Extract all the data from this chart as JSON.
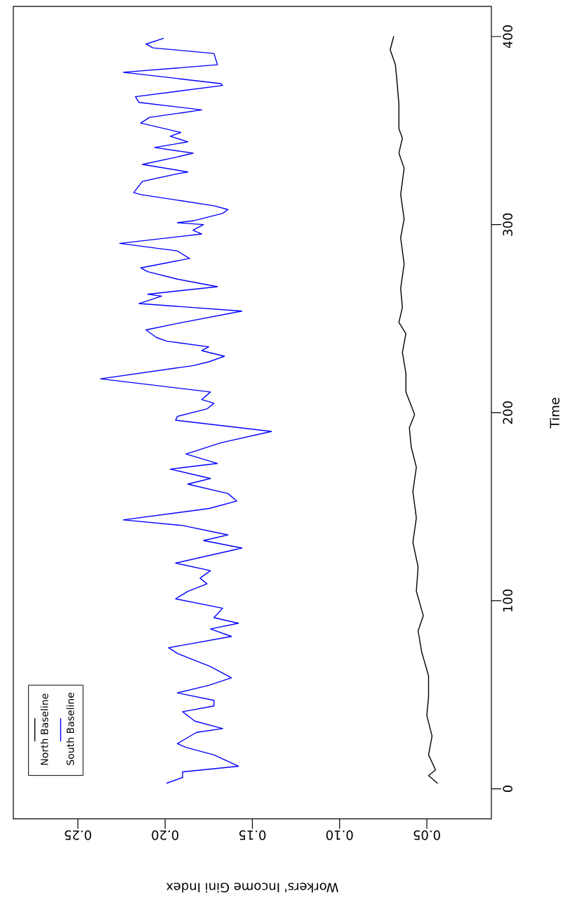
{
  "chart_data": {
    "type": "line",
    "xlabel": "Workers' Income Gini Index",
    "ylabel": "Time",
    "xlim": [
      0.287,
      0.013
    ],
    "ylim": [
      -16,
      416
    ],
    "xticks": [
      0.05,
      {
        "value": 0.1,
        "label": "0.10"
      },
      0.15,
      {
        "value": 0.2,
        "label": "0.20"
      },
      0.25
    ],
    "yticks": [
      0,
      100,
      200,
      300,
      400
    ],
    "legend": "bottom left",
    "marker": "none",
    "line_style": "solid",
    "series": [
      {
        "name": "North Baseline",
        "color": "#000000",
        "values": [
          3,
          7,
          10,
          18,
          28,
          39,
          49,
          60,
          73,
          84,
          92,
          105,
          118,
          131,
          144,
          158,
          171,
          182,
          192,
          199,
          211,
          221,
          232,
          242,
          248,
          256,
          266,
          279,
          293,
          303,
          316,
          330,
          338,
          346,
          351,
          364,
          375,
          385,
          393,
          400
        ],
        "x": [
          0.044,
          0.049,
          0.045,
          0.049,
          0.047,
          0.05,
          0.049,
          0.049,
          0.053,
          0.055,
          0.052,
          0.056,
          0.055,
          0.058,
          0.056,
          0.058,
          0.056,
          0.059,
          0.06,
          0.057,
          0.062,
          0.062,
          0.064,
          0.062,
          0.066,
          0.064,
          0.065,
          0.063,
          0.065,
          0.063,
          0.065,
          0.063,
          0.066,
          0.064,
          0.066,
          0.066,
          0.067,
          0.068,
          0.071,
          0.069
        ]
      },
      {
        "name": "South Baseline",
        "color": "#0000ff",
        "values": [
          3,
          6,
          9,
          12,
          18,
          22,
          24,
          30,
          32,
          36,
          41,
          44,
          47,
          51,
          55,
          59,
          65,
          72,
          75,
          81,
          85,
          88,
          91,
          96,
          101,
          105,
          109,
          112,
          116,
          120,
          128,
          132,
          135,
          140,
          143,
          149,
          153,
          157,
          162,
          165,
          170,
          173,
          178,
          184,
          190,
          196,
          198,
          202,
          205,
          207,
          211,
          218,
          225,
          227,
          230,
          233,
          235,
          238,
          240,
          244,
          248,
          254,
          258,
          262,
          263,
          267,
          271,
          275,
          277,
          282,
          286,
          290,
          295,
          297,
          300,
          301,
          302,
          306,
          308,
          310,
          316,
          317,
          323,
          327,
          328,
          332,
          336,
          338,
          341,
          344,
          347,
          349,
          354,
          357,
          361,
          365,
          368,
          374,
          375,
          381,
          385,
          391,
          394,
          396,
          399
        ],
        "x": [
          0.199,
          0.19,
          0.19,
          0.158,
          0.172,
          0.188,
          0.193,
          0.182,
          0.167,
          0.183,
          0.19,
          0.172,
          0.172,
          0.193,
          0.175,
          0.162,
          0.174,
          0.193,
          0.198,
          0.162,
          0.174,
          0.158,
          0.172,
          0.167,
          0.194,
          0.187,
          0.176,
          0.18,
          0.174,
          0.194,
          0.156,
          0.178,
          0.164,
          0.19,
          0.224,
          0.175,
          0.159,
          0.164,
          0.187,
          0.174,
          0.197,
          0.17,
          0.188,
          0.168,
          0.139,
          0.194,
          0.193,
          0.176,
          0.172,
          0.179,
          0.174,
          0.237,
          0.184,
          0.175,
          0.166,
          0.179,
          0.175,
          0.199,
          0.205,
          0.211,
          0.19,
          0.156,
          0.215,
          0.202,
          0.21,
          0.17,
          0.193,
          0.21,
          0.214,
          0.186,
          0.193,
          0.226,
          0.179,
          0.184,
          0.178,
          0.193,
          0.184,
          0.167,
          0.164,
          0.172,
          0.214,
          0.218,
          0.213,
          0.193,
          0.187,
          0.213,
          0.193,
          0.184,
          0.206,
          0.187,
          0.197,
          0.191,
          0.214,
          0.209,
          0.179,
          0.215,
          0.217,
          0.167,
          0.168,
          0.224,
          0.17,
          0.172,
          0.207,
          0.211,
          0.201
        ]
      }
    ]
  }
}
